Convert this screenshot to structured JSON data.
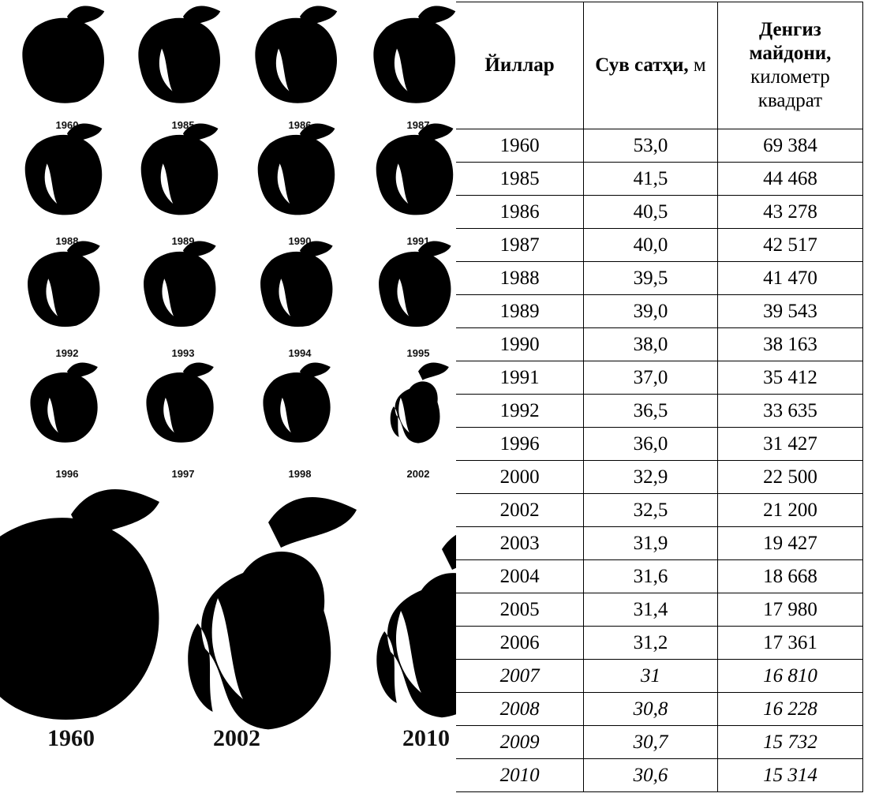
{
  "maps": {
    "small_labels": [
      "1960",
      "1985",
      "1986",
      "1987",
      "1988",
      "1989",
      "1990",
      "1991",
      "1992",
      "1993",
      "1994",
      "1995",
      "1996",
      "1997",
      "1998",
      "2002"
    ],
    "large_labels": [
      "1960",
      "2002",
      "2010"
    ]
  },
  "table": {
    "header": [
      {
        "bold": "Йиллар"
      },
      {
        "bold": "Сув сатҳи,",
        "normal": "м"
      },
      {
        "bold": "Денгиз майдони,",
        "normal": "километр квадрат"
      }
    ],
    "rows": [
      [
        "1960",
        "53,0",
        "69 384"
      ],
      [
        "1985",
        "41,5",
        "44 468"
      ],
      [
        "1986",
        "40,5",
        "43 278"
      ],
      [
        "1987",
        "40,0",
        "42 517"
      ],
      [
        "1988",
        "39,5",
        "41 470"
      ],
      [
        "1989",
        "39,0",
        "39 543"
      ],
      [
        "1990",
        "38,0",
        "38 163"
      ],
      [
        "1991",
        "37,0",
        "35 412"
      ],
      [
        "1992",
        "36,5",
        "33 635"
      ],
      [
        "1996",
        "36,0",
        "31 427"
      ],
      [
        "2000",
        "32,9",
        "22 500"
      ],
      [
        "2002",
        "32,5",
        "21 200"
      ],
      [
        "2003",
        "31,9",
        "19 427"
      ],
      [
        "2004",
        "31,6",
        "18 668"
      ],
      [
        "2005",
        "31,4",
        "17 980"
      ],
      [
        "2006",
        "31,2",
        "17 361"
      ],
      [
        "2007",
        "31",
        "16 810"
      ],
      [
        "2008",
        "30,8",
        "16 228"
      ],
      [
        "2009",
        "30,7",
        "15 732"
      ],
      [
        "2010",
        "30,6",
        "15 314"
      ]
    ]
  }
}
